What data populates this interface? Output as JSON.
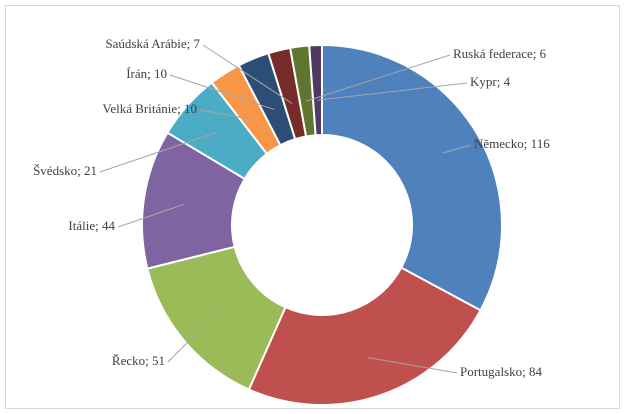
{
  "chart_data": {
    "type": "donut",
    "categories": [
      "Německo",
      "Portugalsko",
      "Řecko",
      "Itálie",
      "Švédsko",
      "Velká Británie",
      "Írán",
      "Saúdská Arábie",
      "Ruská federace",
      "Kypr"
    ],
    "values": [
      116,
      84,
      51,
      44,
      21,
      10,
      10,
      7,
      6,
      4
    ],
    "value_labels": [
      "Německo; 116",
      "Portugalsko; 84",
      "Řecko; 51",
      "Itálie; 44",
      "Švédsko; 21",
      "Velká Británie; 10",
      "Írán; 10",
      "Saúdská Arábie; 7",
      "Ruská federace; 6",
      "Kypr; 4"
    ],
    "colors": [
      "#4f81bd",
      "#c0504d",
      "#9bbb59",
      "#8064a2",
      "#4bacc6",
      "#f79646",
      "#2c4d75",
      "#772c2a",
      "#5f7530",
      "#4d3b62"
    ]
  }
}
